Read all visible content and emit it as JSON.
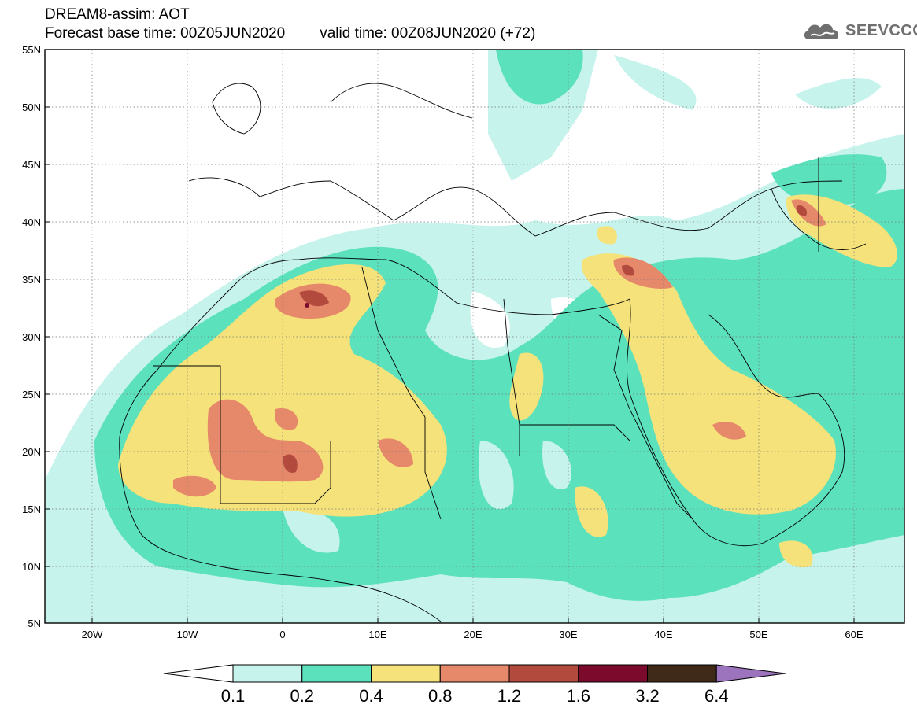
{
  "header": {
    "title": "DREAM8-assim: AOT",
    "base_time": "Forecast base time: 00Z05JUN2020",
    "valid_time": "valid time: 00Z08JUN2020 (+72)"
  },
  "logo": {
    "text": "SEEVCCC",
    "icon": "cloud-icon"
  },
  "axes": {
    "lat_labels": [
      "55N",
      "50N",
      "45N",
      "40N",
      "35N",
      "30N",
      "25N",
      "20N",
      "15N",
      "10N",
      "5N"
    ],
    "lon_labels": [
      "20W",
      "10W",
      "0",
      "10E",
      "20E",
      "30E",
      "40E",
      "50E",
      "60E"
    ],
    "lat_range": [
      5,
      55
    ],
    "lon_range": [
      -25,
      65
    ],
    "grid": "dotted"
  },
  "colorbar": {
    "labels": [
      "0.1",
      "0.2",
      "0.4",
      "0.8",
      "1.2",
      "1.6",
      "3.2",
      "6.4"
    ],
    "colors": [
      "#c6f3ec",
      "#5ce1bd",
      "#f5e27a",
      "#e6896a",
      "#b24b3e",
      "#7c0a2c",
      "#3f2a1a",
      "#9c74bd"
    ]
  }
}
